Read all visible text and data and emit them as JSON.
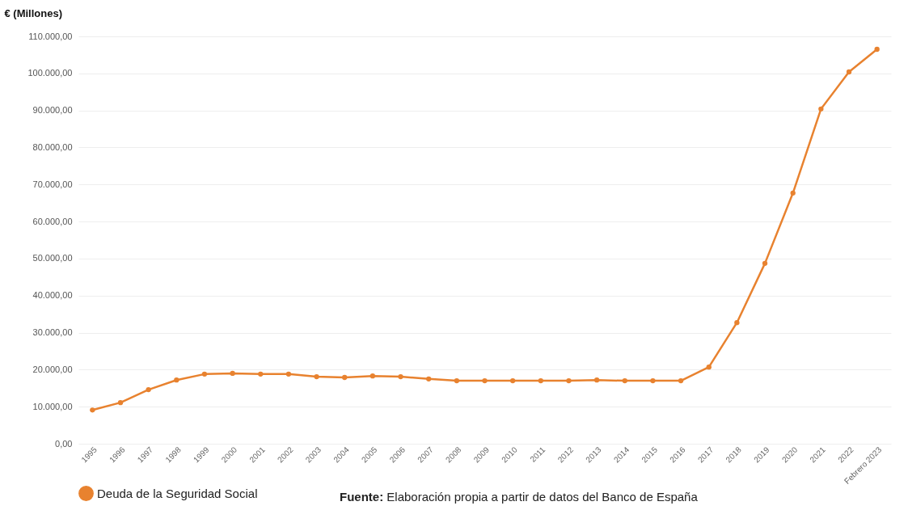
{
  "chart_data": {
    "type": "line",
    "ylabel": "€ (Millones)",
    "categories": [
      "1995",
      "1996",
      "1997",
      "1998",
      "1999",
      "2000",
      "2001",
      "2002",
      "2003",
      "2004",
      "2005",
      "2006",
      "2007",
      "2008",
      "2009",
      "2010",
      "2011",
      "2012",
      "2013",
      "2014",
      "2015",
      "2016",
      "2017",
      "2018",
      "2019",
      "2020",
      "2021",
      "2022",
      "Febrero 2023"
    ],
    "series": [
      {
        "name": "Deuda de la Seguridad Social",
        "color": "#e8822f",
        "values": [
          9100,
          11100,
          14600,
          17200,
          18800,
          19000,
          18800,
          18800,
          18100,
          17900,
          18300,
          18100,
          17500,
          17000,
          17000,
          17000,
          17000,
          17000,
          17200,
          17000,
          17000,
          17000,
          20700,
          32700,
          48700,
          67700,
          90400,
          100400,
          106500
        ]
      }
    ],
    "ylim": [
      0,
      110000
    ],
    "yticks": [
      {
        "value": 0,
        "label": "0,00"
      },
      {
        "value": 10000,
        "label": "10.000,00"
      },
      {
        "value": 20000,
        "label": "20.000,00"
      },
      {
        "value": 30000,
        "label": "30.000,00"
      },
      {
        "value": 40000,
        "label": "40.000,00"
      },
      {
        "value": 50000,
        "label": "50.000,00"
      },
      {
        "value": 60000,
        "label": "60.000,00"
      },
      {
        "value": 70000,
        "label": "70.000,00"
      },
      {
        "value": 80000,
        "label": "80.000,00"
      },
      {
        "value": 90000,
        "label": "90.000,00"
      },
      {
        "value": 100000,
        "label": "100.000,00"
      },
      {
        "value": 110000,
        "label": "110.000,00"
      }
    ],
    "grid": "y",
    "marker": "circle",
    "legend": "bottom left",
    "annotations": [
      "Fuente: Elaboración propia a partir de datos del Banco de España"
    ]
  }
}
